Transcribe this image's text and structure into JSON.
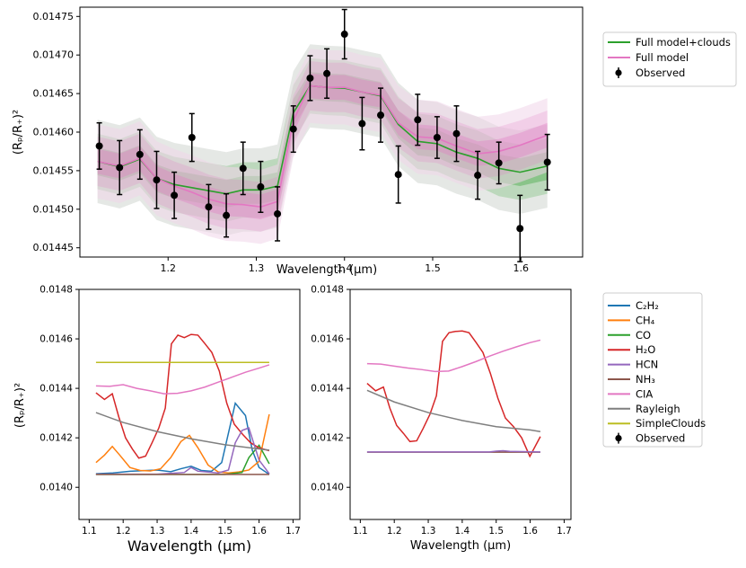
{
  "chart_data": [
    {
      "type": "line",
      "title": "",
      "xlabel": "Wavelength (μm)",
      "ylabel": "(Rₚ/R₊)²",
      "xlim": [
        1.1,
        1.67
      ],
      "ylim": [
        0.14438,
        0.14762
      ],
      "ylim_scale_note": "",
      "yscale": 0.1,
      "xticks": [
        1.2,
        1.3,
        1.4,
        1.5,
        1.6
      ],
      "xtick_labels": [
        "1.2",
        "1.3",
        "1.4",
        "1.5",
        "1.6"
      ],
      "yticks": [
        0.01445,
        0.0145,
        0.01455,
        0.0146,
        0.01465,
        0.0147,
        0.01475
      ],
      "ytick_labels": [
        "0.01445",
        "0.01450",
        "0.01455",
        "0.01460",
        "0.01465",
        "0.01470",
        "0.01475"
      ],
      "legend_position": "outside-right",
      "observed": {
        "name": "Observed",
        "x": [
          1.122,
          1.145,
          1.168,
          1.187,
          1.207,
          1.227,
          1.246,
          1.266,
          1.285,
          1.305,
          1.324,
          1.342,
          1.361,
          1.38,
          1.4,
          1.42,
          1.441,
          1.461,
          1.483,
          1.505,
          1.527,
          1.551,
          1.575,
          1.599,
          1.63
        ],
        "y": [
          0.014582,
          0.014554,
          0.014571,
          0.014538,
          0.014518,
          0.014593,
          0.014503,
          0.014492,
          0.014553,
          0.014529,
          0.014494,
          0.014604,
          0.01467,
          0.014676,
          0.014727,
          0.014611,
          0.014622,
          0.014545,
          0.014616,
          0.014593,
          0.014598,
          0.014544,
          0.01456,
          0.014475,
          0.014561
        ],
        "err": [
          3e-05,
          3.5e-05,
          3.2e-05,
          3.7e-05,
          3e-05,
          3.1e-05,
          2.9e-05,
          2.8e-05,
          3.4e-05,
          3.3e-05,
          3.5e-05,
          3e-05,
          2.9e-05,
          3.2e-05,
          3.2e-05,
          3.4e-05,
          3.5e-05,
          3.7e-05,
          3.3e-05,
          2.7e-05,
          3.6e-05,
          3.1e-05,
          2.7e-05,
          4.3e-05,
          3.6e-05
        ]
      },
      "series": [
        {
          "name": "Full model+clouds",
          "color": "#2ca02c",
          "x": [
            1.12,
            1.145,
            1.168,
            1.187,
            1.207,
            1.227,
            1.246,
            1.266,
            1.285,
            1.305,
            1.324,
            1.342,
            1.361,
            1.38,
            1.4,
            1.42,
            1.441,
            1.461,
            1.483,
            1.505,
            1.527,
            1.551,
            1.575,
            1.599,
            1.63
          ],
          "y": [
            0.014562,
            0.014555,
            0.014565,
            0.01454,
            0.014532,
            0.014528,
            0.014524,
            0.01452,
            0.014525,
            0.014525,
            0.01453,
            0.014625,
            0.01466,
            0.014658,
            0.014657,
            0.014652,
            0.014647,
            0.01461,
            0.014588,
            0.014585,
            0.014574,
            0.014566,
            0.014553,
            0.014548,
            0.014556
          ],
          "band_width": 1.8e-05
        },
        {
          "name": "Full model",
          "color": "#e377c2",
          "x": [
            1.12,
            1.145,
            1.168,
            1.187,
            1.207,
            1.227,
            1.246,
            1.266,
            1.285,
            1.305,
            1.324,
            1.342,
            1.361,
            1.38,
            1.4,
            1.42,
            1.441,
            1.461,
            1.483,
            1.505,
            1.527,
            1.551,
            1.575,
            1.599,
            1.63
          ],
          "y": [
            0.014562,
            0.014556,
            0.014566,
            0.01454,
            0.01453,
            0.014522,
            0.014513,
            0.014507,
            0.014506,
            0.014503,
            0.01451,
            0.014615,
            0.01466,
            0.014658,
            0.014658,
            0.014652,
            0.014648,
            0.014612,
            0.014594,
            0.014592,
            0.014582,
            0.014572,
            0.014575,
            0.014583,
            0.014596
          ],
          "band_width": 1.6e-05
        }
      ]
    },
    {
      "type": "line",
      "title": "",
      "xlabel": "Wavelength (μm)",
      "ylabel": "(Rₚ/R₊)²",
      "xlim": [
        1.07,
        1.72
      ],
      "ylim": [
        0.01387,
        0.0148
      ],
      "xticks": [
        1.1,
        1.2,
        1.3,
        1.4,
        1.5,
        1.6,
        1.7
      ],
      "xtick_labels": [
        "1.1",
        "1.2",
        "1.3",
        "1.4",
        "1.5",
        "1.6",
        "1.7"
      ],
      "yticks": [
        0.014,
        0.0142,
        0.0144,
        0.0146,
        0.0148
      ],
      "ytick_labels": [
        "0.0140",
        "0.0142",
        "0.0144",
        "0.0146",
        "0.0148"
      ],
      "observed_name": "Observed",
      "series": [
        {
          "name": "C₂H₂",
          "color": "#1f77b4",
          "x": [
            1.12,
            1.17,
            1.22,
            1.27,
            1.3,
            1.34,
            1.37,
            1.4,
            1.43,
            1.46,
            1.49,
            1.51,
            1.53,
            1.56,
            1.58,
            1.6,
            1.63
          ],
          "y": [
            0.014055,
            0.014058,
            0.014065,
            0.014068,
            0.01407,
            0.014063,
            0.014075,
            0.014085,
            0.014068,
            0.014065,
            0.0141,
            0.01422,
            0.01434,
            0.01429,
            0.01415,
            0.01408,
            0.014052
          ]
        },
        {
          "name": "CH₄",
          "color": "#ff7f0e",
          "x": [
            1.12,
            1.145,
            1.168,
            1.19,
            1.22,
            1.25,
            1.28,
            1.31,
            1.34,
            1.37,
            1.395,
            1.42,
            1.45,
            1.48,
            1.51,
            1.54,
            1.57,
            1.6,
            1.63
          ],
          "y": [
            0.0141,
            0.01413,
            0.014165,
            0.01413,
            0.01408,
            0.014068,
            0.014066,
            0.014075,
            0.01412,
            0.014185,
            0.01421,
            0.01416,
            0.01409,
            0.014062,
            0.014058,
            0.014062,
            0.01407,
            0.014105,
            0.014295
          ]
        },
        {
          "name": "CO",
          "color": "#2ca02c",
          "x": [
            1.12,
            1.3,
            1.5,
            1.55,
            1.57,
            1.6,
            1.63
          ],
          "y": [
            0.014052,
            0.014052,
            0.014052,
            0.01406,
            0.01412,
            0.01417,
            0.014095
          ]
        },
        {
          "name": "H₂O",
          "color": "#d62728",
          "x": [
            1.12,
            1.145,
            1.168,
            1.187,
            1.207,
            1.227,
            1.246,
            1.266,
            1.285,
            1.305,
            1.324,
            1.342,
            1.361,
            1.38,
            1.4,
            1.42,
            1.441,
            1.461,
            1.483,
            1.505,
            1.527,
            1.551,
            1.575,
            1.599,
            1.63
          ],
          "y": [
            0.014382,
            0.014355,
            0.014378,
            0.014285,
            0.0142,
            0.014155,
            0.014118,
            0.014126,
            0.01418,
            0.01424,
            0.01432,
            0.01458,
            0.014615,
            0.014605,
            0.014618,
            0.014615,
            0.01458,
            0.014545,
            0.01447,
            0.01434,
            0.014255,
            0.014215,
            0.01418,
            0.01416,
            0.014148
          ]
        },
        {
          "name": "HCN",
          "color": "#9467bd",
          "x": [
            1.12,
            1.3,
            1.38,
            1.4,
            1.42,
            1.48,
            1.51,
            1.53,
            1.55,
            1.57,
            1.6,
            1.63
          ],
          "y": [
            0.014053,
            0.014053,
            0.01406,
            0.01408,
            0.014065,
            0.014058,
            0.01407,
            0.01418,
            0.01423,
            0.01424,
            0.01411,
            0.014055
          ]
        },
        {
          "name": "NH₃",
          "color": "#8c564b",
          "x": [
            1.12,
            1.63
          ],
          "y": [
            0.014052,
            0.014052
          ]
        },
        {
          "name": "CIA",
          "color": "#e377c2",
          "x": [
            1.12,
            1.16,
            1.2,
            1.24,
            1.28,
            1.32,
            1.36,
            1.4,
            1.44,
            1.48,
            1.52,
            1.56,
            1.6,
            1.63
          ],
          "y": [
            0.01441,
            0.014408,
            0.014415,
            0.0144,
            0.01439,
            0.014378,
            0.01438,
            0.01439,
            0.014405,
            0.014425,
            0.014445,
            0.014465,
            0.014482,
            0.014495
          ]
        },
        {
          "name": "Rayleigh",
          "color": "#7f7f7f",
          "x": [
            1.12,
            1.2,
            1.3,
            1.4,
            1.5,
            1.6,
            1.63
          ],
          "y": [
            0.014302,
            0.014262,
            0.014225,
            0.014196,
            0.014172,
            0.014155,
            0.01415
          ]
        },
        {
          "name": "SimpleClouds",
          "color": "#bcbd22",
          "x": [
            1.12,
            1.63
          ],
          "y": [
            0.014505,
            0.014505
          ]
        }
      ]
    },
    {
      "type": "line",
      "title": "",
      "xlabel": "Wavelength (μm)",
      "ylabel": "",
      "xlim": [
        1.07,
        1.72
      ],
      "ylim": [
        0.01387,
        0.0148
      ],
      "xticks": [
        1.1,
        1.2,
        1.3,
        1.4,
        1.5,
        1.6,
        1.7
      ],
      "xtick_labels": [
        "1.1",
        "1.2",
        "1.3",
        "1.4",
        "1.5",
        "1.6",
        "1.7"
      ],
      "yticks": [
        0.014,
        0.0142,
        0.0144,
        0.0146,
        0.0148
      ],
      "ytick_labels": [
        "0.0140",
        "0.0142",
        "0.0144",
        "0.0146",
        "0.0148"
      ],
      "observed_name": "Observed",
      "series": [
        {
          "name": "H₂O",
          "color": "#d62728",
          "x": [
            1.12,
            1.145,
            1.168,
            1.187,
            1.207,
            1.227,
            1.246,
            1.266,
            1.285,
            1.305,
            1.324,
            1.342,
            1.361,
            1.38,
            1.4,
            1.42,
            1.441,
            1.461,
            1.483,
            1.505,
            1.527,
            1.551,
            1.575,
            1.599,
            1.63
          ],
          "y": [
            0.01442,
            0.01439,
            0.014405,
            0.01432,
            0.01425,
            0.014218,
            0.014185,
            0.014188,
            0.014238,
            0.014295,
            0.01437,
            0.01459,
            0.014625,
            0.01463,
            0.014632,
            0.014625,
            0.014585,
            0.014545,
            0.01446,
            0.01436,
            0.01428,
            0.014245,
            0.0142,
            0.014125,
            0.014205
          ]
        },
        {
          "name": "CIA",
          "color": "#e377c2",
          "x": [
            1.12,
            1.16,
            1.2,
            1.24,
            1.28,
            1.32,
            1.36,
            1.4,
            1.44,
            1.48,
            1.52,
            1.56,
            1.6,
            1.63
          ],
          "y": [
            0.0145,
            0.014498,
            0.01449,
            0.014482,
            0.014476,
            0.014468,
            0.01447,
            0.014488,
            0.014508,
            0.01453,
            0.01455,
            0.014568,
            0.014585,
            0.014595
          ]
        },
        {
          "name": "Rayleigh",
          "color": "#7f7f7f",
          "x": [
            1.12,
            1.2,
            1.3,
            1.4,
            1.5,
            1.6,
            1.63
          ],
          "y": [
            0.014392,
            0.014345,
            0.014302,
            0.01427,
            0.014245,
            0.014232,
            0.014225
          ]
        },
        {
          "name": "NH₃",
          "color": "#8c564b",
          "x": [
            1.12,
            1.63
          ],
          "y": [
            0.014142,
            0.014142
          ]
        },
        {
          "name": "HCN",
          "color": "#9467bd",
          "x": [
            1.12,
            1.48,
            1.5,
            1.52,
            1.54,
            1.63
          ],
          "y": [
            0.014143,
            0.014143,
            0.014146,
            0.014148,
            0.014145,
            0.014143
          ]
        }
      ]
    }
  ],
  "legends": {
    "top": [
      "Full model+clouds",
      "Full model",
      "Observed"
    ],
    "bottom": [
      "C₂H₂",
      "CH₄",
      "CO",
      "H₂O",
      "HCN",
      "NH₃",
      "CIA",
      "Rayleigh",
      "SimpleClouds",
      "Observed"
    ]
  }
}
